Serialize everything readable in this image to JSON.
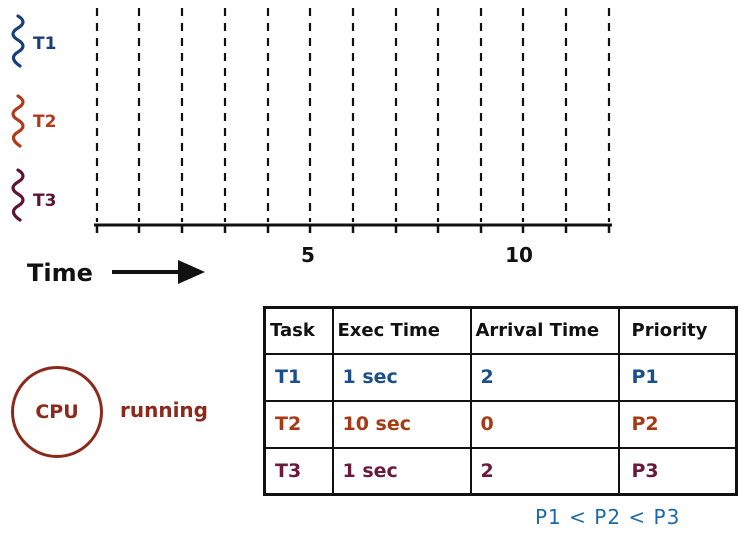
{
  "timeline": {
    "time_label": "Time",
    "ticks": [
      "5",
      "10"
    ],
    "tasks": [
      {
        "label": "T1",
        "color": "#1a3f78"
      },
      {
        "label": "T2",
        "color": "#b03a1a"
      },
      {
        "label": "T3",
        "color": "#5a1530"
      }
    ]
  },
  "table": {
    "headers": [
      "Task",
      "Exec Time",
      "Arrival Time",
      "Priority"
    ],
    "rows": [
      {
        "task": "T1",
        "exec": "1 sec",
        "arrival": "2",
        "priority": "P1",
        "color": "#1a4f8a"
      },
      {
        "task": "T2",
        "exec": "10 sec",
        "arrival": "0",
        "priority": "P2",
        "color": "#a63a14"
      },
      {
        "task": "T3",
        "exec": "1 sec",
        "arrival": "2",
        "priority": "P3",
        "color": "#6a1a3a"
      }
    ]
  },
  "cpu": {
    "label": "CPU",
    "state": "running"
  },
  "note": "P1 < P2 < P3"
}
